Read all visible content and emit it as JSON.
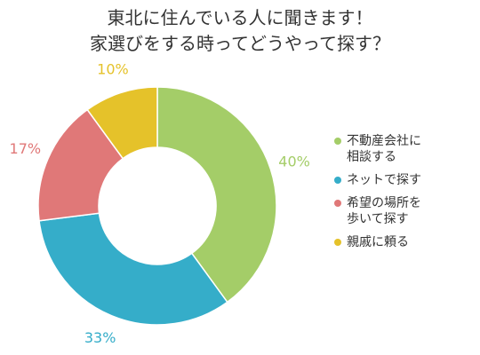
{
  "chart_data": {
    "type": "donut",
    "title_lines": [
      "東北に住んでいる人に聞きます！",
      "家選びをする時ってどうやって探す？"
    ],
    "categories": [
      "不動産会社に\n相談する",
      "ネットで探す",
      "希望の場所を\n歩いて探す",
      "親戚に頼る"
    ],
    "values": [
      40,
      33,
      17,
      10
    ],
    "labels": [
      "40%",
      "33%",
      "17%",
      "10%"
    ],
    "colors": [
      "#a4cd68",
      "#35adc9",
      "#e07878",
      "#e5c22a"
    ],
    "legend_position": "right"
  }
}
